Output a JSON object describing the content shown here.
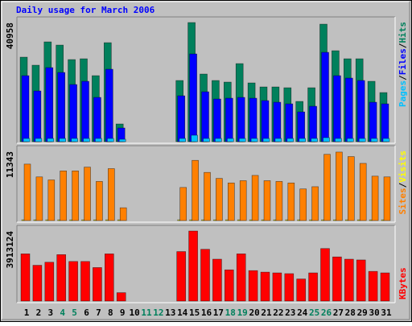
{
  "chart_data": [
    {
      "type": "bar",
      "title": "Daily usage for March 2006",
      "legend": "top",
      "legend_separator": "/",
      "ylim": [
        0,
        40958
      ],
      "yticks": [
        40958
      ],
      "series": [
        {
          "name": "Hits",
          "color": "#00805c",
          "values": [
            29054,
            26287,
            34311,
            33204,
            28223,
            28500,
            22690,
            34034,
            6087,
            0,
            0,
            0,
            0,
            21029,
            40958,
            23243,
            21029,
            20476,
            26840,
            20199,
            18816,
            18816,
            18539,
            13835,
            18539,
            40399,
            31267,
            28500,
            28500,
            20753,
            16879
          ]
        },
        {
          "name": "Files",
          "color": "#0000ff",
          "values": [
            22689,
            17432,
            25456,
            23796,
            19646,
            20753,
            15219,
            24903,
            4704,
            0,
            0,
            0,
            0,
            15772,
            30160,
            17155,
            14665,
            14942,
            15219,
            14942,
            14112,
            13558,
            13005,
            10238,
            12175,
            30714,
            22689,
            21859,
            21029,
            13558,
            13005
          ]
        },
        {
          "name": "Pages",
          "color": "#00c0ff",
          "values": [
            1107,
            1107,
            1107,
            1107,
            1107,
            1107,
            1107,
            1107,
            830,
            0,
            0,
            0,
            0,
            1107,
            2214,
            1107,
            1107,
            1107,
            1107,
            1107,
            1107,
            1107,
            1107,
            1107,
            1107,
            1384,
            1107,
            1107,
            1107,
            1107,
            1107
          ]
        }
      ]
    },
    {
      "type": "bar",
      "legend": "top",
      "legend_separator": "/",
      "ylim": [
        0,
        11343
      ],
      "yticks": [
        11343
      ],
      "series": [
        {
          "name": "Visits",
          "color": "#ffff00",
          "values": [
            120,
            120,
            120,
            120,
            120,
            120,
            120,
            120,
            120,
            0,
            0,
            0,
            0,
            120,
            120,
            120,
            120,
            120,
            120,
            120,
            120,
            120,
            120,
            120,
            120,
            120,
            120,
            120,
            120,
            120,
            120
          ]
        },
        {
          "name": "Sites",
          "color": "#ff8000",
          "values": [
            9248,
            7151,
            6658,
            8138,
            8138,
            8754,
            6412,
            8508,
            2096,
            0,
            0,
            0,
            0,
            5425,
            9864,
            7891,
            6905,
            6165,
            6535,
            7398,
            6535,
            6412,
            6165,
            5179,
            5549,
            10850,
            11220,
            10481,
            9371,
            7275,
            7151
          ]
        }
      ]
    },
    {
      "type": "bar",
      "legend": "bottom",
      "ylim": [
        0,
        3913124
      ],
      "yticks": [
        3913124
      ],
      "categories": [
        "1",
        "2",
        "3",
        "4",
        "5",
        "6",
        "7",
        "8",
        "9",
        "10",
        "11",
        "12",
        "13",
        "14",
        "15",
        "16",
        "17",
        "18",
        "19",
        "20",
        "21",
        "22",
        "23",
        "24",
        "25",
        "26",
        "27",
        "28",
        "29",
        "30",
        "31"
      ],
      "category_colors": [
        "#000000",
        "#000000",
        "#000000",
        "#00805c",
        "#00805c",
        "#000000",
        "#000000",
        "#000000",
        "#000000",
        "#000000",
        "#00805c",
        "#00805c",
        "#000000",
        "#000000",
        "#000000",
        "#000000",
        "#000000",
        "#00805c",
        "#00805c",
        "#000000",
        "#000000",
        "#000000",
        "#000000",
        "#000000",
        "#00805c",
        "#00805c",
        "#000000",
        "#000000",
        "#000000",
        "#000000",
        "#000000"
      ],
      "series": [
        {
          "name": "KBytes",
          "color": "#ff0000",
          "values": [
            2637108,
            1999098,
            2169234,
            2594574,
            2211768,
            2211768,
            1871496,
            2637108,
            467874,
            0,
            0,
            0,
            0,
            2764710,
            3913124,
            2892312,
            2339370,
            1743894,
            2637108,
            1701360,
            1616292,
            1573758,
            1531224,
            1233486,
            1573758,
            2934846,
            2466972,
            2339370,
            2296836,
            1658826,
            1573758
          ]
        }
      ]
    }
  ]
}
